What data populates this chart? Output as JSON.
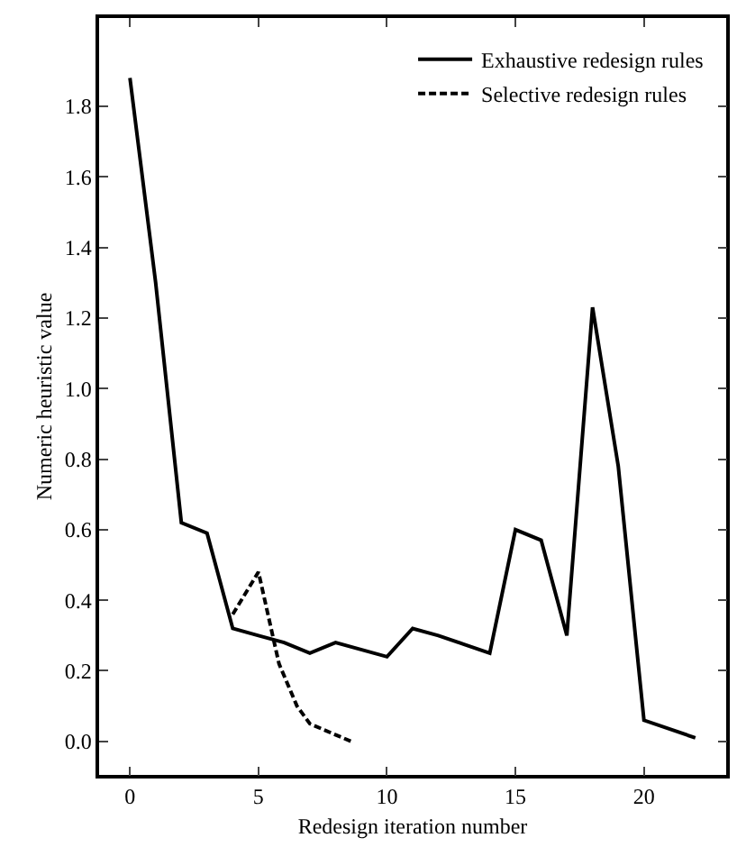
{
  "chart_data": {
    "type": "line",
    "xlabel": "Redesign iteration number",
    "ylabel": "Numeric heuristic value",
    "xlim": [
      -1.2,
      23.2
    ],
    "xticks": [
      0,
      5,
      10,
      15,
      20
    ],
    "ylim": [
      -0.095,
      2.05
    ],
    "yticks": [
      {
        "value": 0,
        "label": "0.0"
      },
      0.2,
      0.4,
      0.6,
      0.8,
      {
        "value": 1,
        "label": "1.0"
      },
      1.2,
      1.4,
      1.6,
      1.8
    ],
    "grid": false,
    "legend": "top right",
    "marker": "none",
    "series": [
      {
        "name": "Exhaustive redesign rules",
        "color": "#000000",
        "line_style": "solid",
        "x": [
          0,
          1,
          2,
          3,
          4,
          5,
          6,
          7,
          8,
          10,
          11,
          12,
          13,
          14,
          15,
          16,
          17,
          18,
          19,
          20,
          22
        ],
        "values": [
          1.88,
          1.3,
          0.62,
          0.59,
          0.32,
          0.3,
          0.28,
          0.25,
          0.28,
          0.24,
          0.32,
          0.3,
          0.275,
          0.25,
          0.6,
          0.57,
          0.3,
          1.23,
          0.78,
          0.06,
          0.01
        ]
      },
      {
        "name": "Selective redesign rules",
        "color": "#000000",
        "line_style": "dashed",
        "x": [
          4,
          5,
          5.8,
          6.5,
          7,
          8.6
        ],
        "values": [
          0.36,
          0.48,
          0.22,
          0.1,
          0.05,
          0.0
        ]
      }
    ]
  }
}
